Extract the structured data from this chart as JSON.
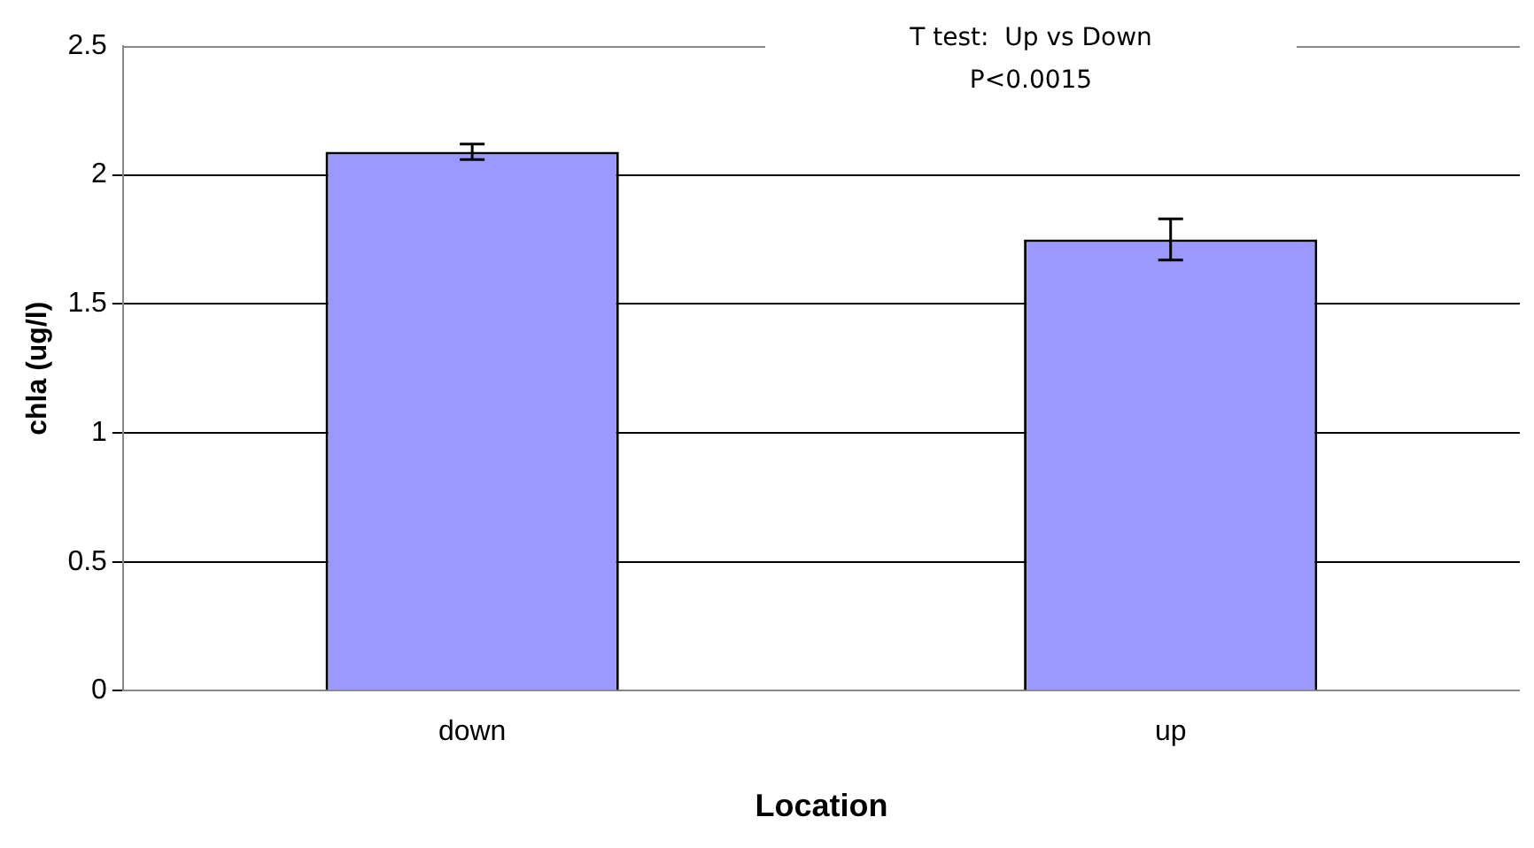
{
  "chart_data": {
    "type": "bar",
    "xlabel": "Location",
    "ylabel": "chla (ug/l)",
    "categories": [
      "down",
      "up"
    ],
    "values": [
      2.09,
      1.75
    ],
    "color": "#9999ff",
    "errors": [
      0.03,
      0.08
    ],
    "ylim": [
      0,
      2.5
    ],
    "yticks": [
      0,
      0.5,
      1,
      1.5,
      2,
      2.5
    ],
    "grid": "y",
    "annotations": [
      "T test:  Up vs Down",
      "P<0.0015"
    ]
  }
}
